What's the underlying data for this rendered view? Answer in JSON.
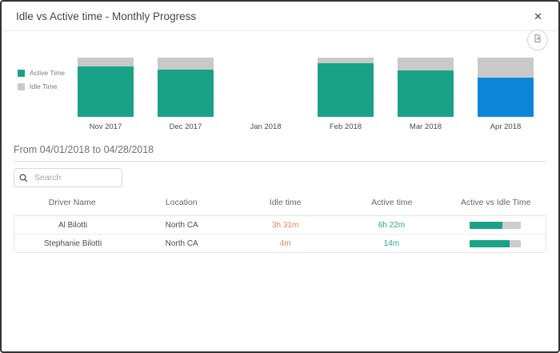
{
  "dialog": {
    "title": "Idle vs Active time - Monthly Progress"
  },
  "icons": {
    "close_glyph": "✕",
    "close": "close-icon",
    "export": "export-report-icon",
    "search": "magnifier-icon"
  },
  "chart_data": {
    "type": "bar",
    "stacked": true,
    "title": "Idle vs Active time - Monthly Progress",
    "categories": [
      "Nov 2017",
      "Dec 2017",
      "Jan 2018",
      "Feb 2018",
      "Mar 2018",
      "Apr 2018"
    ],
    "series": [
      {
        "name": "Active Time",
        "values": [
          85,
          80,
          0,
          91,
          79,
          66
        ]
      },
      {
        "name": "Idle Time",
        "values": [
          15,
          20,
          0,
          9,
          21,
          34
        ]
      }
    ],
    "value_unit": "percent of monthly total (estimated from bar heights)",
    "highlighted_category": "Apr 2018",
    "legend_position": "left",
    "grid": false,
    "colors": {
      "active": "#1aa287",
      "idle": "#c9c9c9",
      "highlight": "#0e86d8"
    }
  },
  "filters": {
    "date_range": "From 04/01/2018 to 04/28/2018",
    "search_placeholder": "Search"
  },
  "table": {
    "columns": [
      "Driver Name",
      "Location",
      "Idle time",
      "Active time",
      "Active vs Idle Time"
    ],
    "rows": [
      {
        "driver": "Al Bilotti",
        "location": "North CA",
        "idle": "3h 31m",
        "active": "6h 22m",
        "active_pct": 64
      },
      {
        "driver": "Stephanie Bilotti",
        "location": "North CA",
        "idle": "4m",
        "active": "14m",
        "active_pct": 78
      }
    ]
  },
  "colors": {
    "accent_teal": "#1aa287",
    "accent_blue": "#0e86d8",
    "idle_gray": "#c9c9c9",
    "idle_text_orange": "#e9855b",
    "active_text_teal": "#2ba58b",
    "dialog_border": "#333333"
  }
}
